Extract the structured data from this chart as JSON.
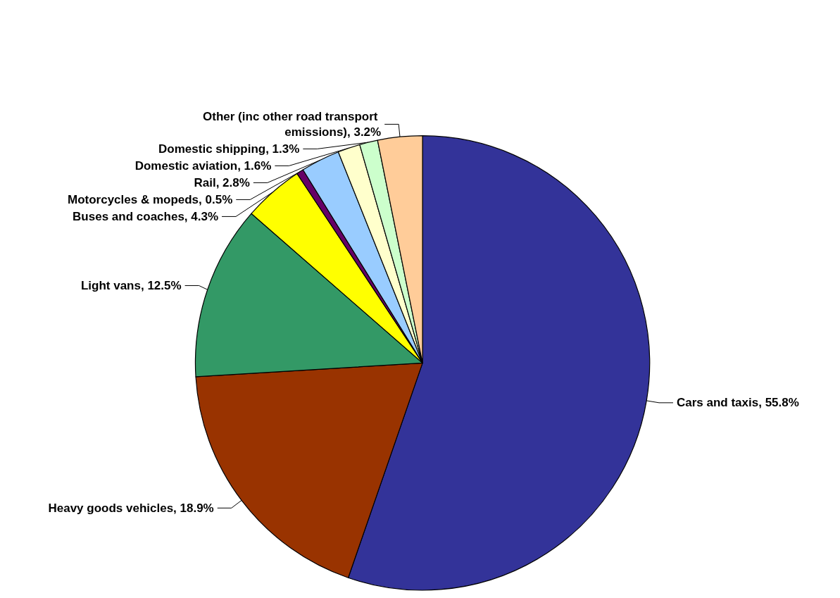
{
  "chart_data": {
    "type": "pie",
    "categories": [
      "Cars and taxis",
      "Heavy goods vehicles",
      "Light vans",
      "Buses and coaches",
      "Motorcycles & mopeds",
      "Rail",
      "Domestic aviation",
      "Domestic shipping",
      "Other (inc other road transport emissions)"
    ],
    "values": [
      55.8,
      18.9,
      12.5,
      4.3,
      0.5,
      2.8,
      1.6,
      1.3,
      3.2
    ],
    "value_labels": [
      "55.8%",
      "18.9%",
      "12.5%",
      "4.3%",
      "0.5%",
      "2.8%",
      "1.6%",
      "1.3%",
      "3.2%"
    ],
    "colors": [
      "#333399",
      "#993300",
      "#339966",
      "#ffff00",
      "#660066",
      "#99ccff",
      "#ffffcc",
      "#ccffcc",
      "#ffcc99"
    ],
    "legend": false
  }
}
